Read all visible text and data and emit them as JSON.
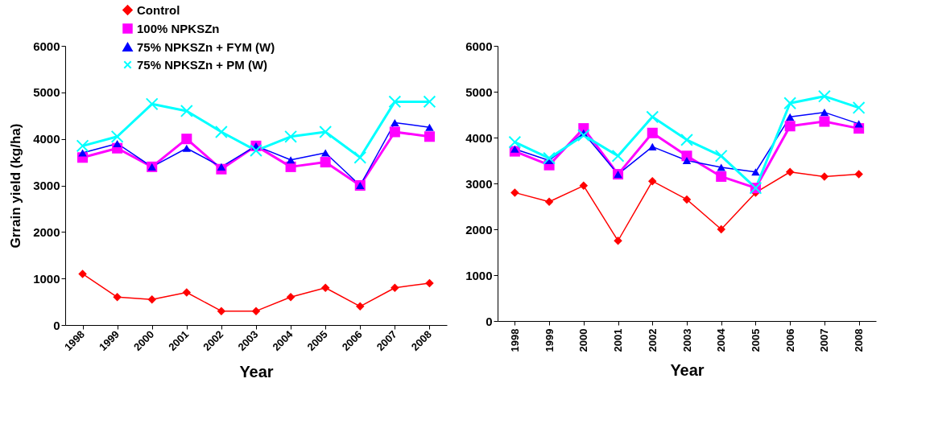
{
  "chart_data": [
    {
      "type": "line",
      "xlabel": "Year",
      "ylabel": "Grrain yield (kg/ha)",
      "categories": [
        "1998",
        "1999",
        "2000",
        "2001",
        "2002",
        "2003",
        "2004",
        "2005",
        "2006",
        "2007",
        "2008"
      ],
      "ylim": [
        0,
        6000
      ],
      "yticks": [
        0,
        1000,
        2000,
        3000,
        4000,
        5000,
        6000
      ],
      "grid": false,
      "legend": "top left",
      "line_style": "solid",
      "series": [
        {
          "name": "Control",
          "color": "#ff0000",
          "marker": "diamond",
          "values": [
            1100,
            600,
            550,
            700,
            300,
            300,
            600,
            800,
            400,
            800,
            900
          ]
        },
        {
          "name": "100% NPKSZn",
          "color": "#ff00ff",
          "marker": "square",
          "values": [
            3600,
            3800,
            3400,
            4000,
            3350,
            3850,
            3400,
            3500,
            3000,
            4150,
            4050
          ]
        },
        {
          "name": "75% NPKSZn + FYM (W)",
          "color": "#0000ff",
          "marker": "triangle",
          "values": [
            3700,
            3900,
            3400,
            3800,
            3400,
            3850,
            3550,
            3700,
            3000,
            4350,
            4250
          ]
        },
        {
          "name": "75% NPKSZn + PM (W)",
          "color": "#00ffff",
          "marker": "cross",
          "values": [
            3850,
            4050,
            4750,
            4600,
            4150,
            3750,
            4050,
            4150,
            3600,
            4800,
            4800
          ]
        }
      ]
    },
    {
      "type": "line",
      "xlabel": "Year",
      "categories": [
        "1998",
        "1999",
        "2000",
        "2001",
        "2002",
        "2003",
        "2004",
        "2005",
        "2006",
        "2007",
        "2008"
      ],
      "ylim": [
        0,
        6000
      ],
      "yticks": [
        0,
        1000,
        2000,
        3000,
        4000,
        5000,
        6000
      ],
      "grid": false,
      "legend": false,
      "line_style": "solid",
      "series": [
        {
          "color": "#ff0000",
          "marker": "diamond",
          "values": [
            2800,
            2600,
            2950,
            1750,
            3050,
            2650,
            2000,
            2800,
            3250,
            3150,
            3200
          ]
        },
        {
          "color": "#ff00ff",
          "marker": "square",
          "values": [
            3700,
            3400,
            4200,
            3200,
            4100,
            3600,
            3150,
            2900,
            4250,
            4350,
            4200
          ]
        },
        {
          "color": "#0000ff",
          "marker": "triangle",
          "values": [
            3750,
            3500,
            4100,
            3200,
            3800,
            3500,
            3350,
            3250,
            4450,
            4550,
            4300
          ]
        },
        {
          "color": "#00ffff",
          "marker": "cross",
          "values": [
            3900,
            3550,
            4050,
            3600,
            4450,
            3950,
            3600,
            2900,
            4750,
            4900,
            4650
          ]
        }
      ]
    }
  ]
}
